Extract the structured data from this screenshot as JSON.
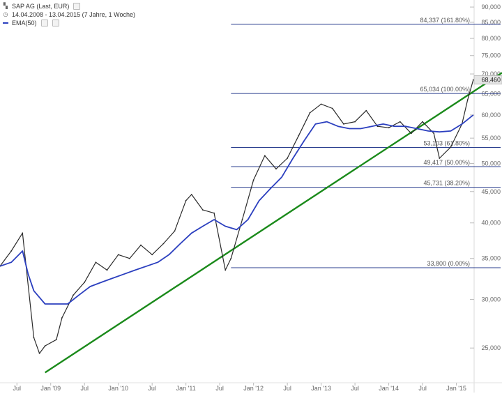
{
  "legend": {
    "instrument": "SAP AG (Last, EUR)",
    "range": "14.04.2008 - 13.04.2015 (7 Jahre, 1 Woche)",
    "indicator": "EMA(50)"
  },
  "colors": {
    "price": "#2a2a2a",
    "ema": "#2b3fbf",
    "trendline": "#1a8a1a",
    "fib": "#2b3f8f",
    "last_box": "#e6e6e6",
    "axis_text": "#666666"
  },
  "chart_data": {
    "type": "line",
    "title": "SAP AG (Last, EUR)",
    "scale": "log",
    "ylim": [
      22000,
      90500
    ],
    "y_ticks": [
      "25,000",
      "30,000",
      "35,000",
      "40,000",
      "45,000",
      "50,000",
      "55,000",
      "60,000",
      "65,000",
      "70,000",
      "75,000",
      "80,000",
      "85,000",
      "90,000"
    ],
    "x_ticks": [
      "Jul",
      "Jan '09",
      "Jul",
      "Jan '10",
      "Jul",
      "Jan '11",
      "Jul",
      "Jan '12",
      "Jul",
      "Jan '13",
      "Jul",
      "Jan '14",
      "Jul",
      "Jan '15"
    ],
    "last_value_label": "68,460",
    "price_series": {
      "name": "SAP AG",
      "x": [
        "2008-04",
        "2008-06",
        "2008-08",
        "2008-10",
        "2008-11",
        "2008-12",
        "2009-02",
        "2009-03",
        "2009-05",
        "2009-07",
        "2009-09",
        "2009-11",
        "2010-01",
        "2010-03",
        "2010-05",
        "2010-07",
        "2010-09",
        "2010-11",
        "2011-01",
        "2011-02",
        "2011-04",
        "2011-06",
        "2011-08",
        "2011-09",
        "2011-11",
        "2012-01",
        "2012-03",
        "2012-05",
        "2012-07",
        "2012-09",
        "2012-11",
        "2013-01",
        "2013-03",
        "2013-05",
        "2013-07",
        "2013-09",
        "2013-11",
        "2014-01",
        "2014-03",
        "2014-05",
        "2014-07",
        "2014-09",
        "2014-10",
        "2014-12",
        "2015-02",
        "2015-03",
        "2015-04"
      ],
      "values": [
        34000,
        36000,
        38500,
        26000,
        24500,
        25200,
        25800,
        28000,
        30500,
        32000,
        34500,
        33500,
        35500,
        35000,
        36800,
        35500,
        37000,
        38800,
        43500,
        44500,
        42000,
        41500,
        33500,
        35000,
        40500,
        47000,
        51500,
        49000,
        51000,
        55500,
        60500,
        62500,
        61500,
        58000,
        58500,
        61000,
        57500,
        57200,
        58500,
        56000,
        58500,
        56000,
        51000,
        53200,
        58000,
        63500,
        68460
      ]
    },
    "ema_series": {
      "name": "EMA(50)",
      "x": [
        "2008-04",
        "2008-06",
        "2008-08",
        "2008-09",
        "2008-10",
        "2008-12",
        "2009-02",
        "2009-04",
        "2009-06",
        "2009-08",
        "2009-10",
        "2009-12",
        "2010-02",
        "2010-04",
        "2010-06",
        "2010-08",
        "2010-10",
        "2010-12",
        "2011-02",
        "2011-04",
        "2011-06",
        "2011-08",
        "2011-10",
        "2011-12",
        "2012-02",
        "2012-04",
        "2012-06",
        "2012-08",
        "2012-10",
        "2012-12",
        "2013-02",
        "2013-04",
        "2013-06",
        "2013-08",
        "2013-10",
        "2013-12",
        "2014-02",
        "2014-04",
        "2014-06",
        "2014-08",
        "2014-10",
        "2014-12",
        "2015-02",
        "2015-04"
      ],
      "values": [
        34000,
        34500,
        36000,
        33000,
        31000,
        29500,
        29500,
        29500,
        30500,
        31500,
        32000,
        32500,
        33000,
        33500,
        34000,
        34500,
        35500,
        37000,
        38500,
        39500,
        40500,
        39500,
        39000,
        40500,
        43500,
        45500,
        47500,
        51000,
        54500,
        58000,
        58500,
        57500,
        57000,
        57000,
        57500,
        58000,
        57500,
        57500,
        57000,
        56500,
        56300,
        56500,
        58000,
        60000
      ]
    },
    "trendline": {
      "x": [
        "2008-12",
        "2015-04"
      ],
      "values": [
        22800,
        65500
      ]
    },
    "fibonacci_levels": [
      {
        "label": "84,337 (161.80%)",
        "value": 84337
      },
      {
        "label": "65,034 (100.00%)",
        "value": 65034
      },
      {
        "label": "53,103 (61.80%)",
        "value": 53103
      },
      {
        "label": "49,417 (50.00%)",
        "value": 49417
      },
      {
        "label": "45,731 (38.20%)",
        "value": 45731
      },
      {
        "label": "33,800 (0.00%)",
        "value": 33800
      }
    ],
    "fibonacci_start": "2011-09",
    "grid": false
  }
}
